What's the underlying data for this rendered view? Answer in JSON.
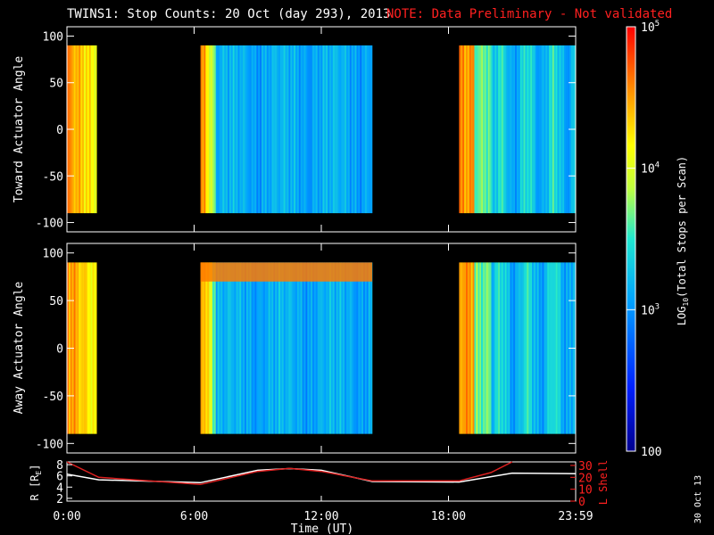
{
  "header": {
    "title": "TWINS1: Stop Counts: 20 Oct (day 293), 2013",
    "note": "NOTE: Data Preliminary - Not validated"
  },
  "side_date": "30 Oct 13",
  "colors": {
    "note": "#ff2020",
    "line_r": "#ffffff",
    "line_l": "#dd2020"
  },
  "chart_data": [
    {
      "type": "heatmap",
      "ylabel": "Toward Actuator Angle",
      "ylim": [
        -110,
        110
      ],
      "y_ticks": [
        "100",
        "50",
        "0",
        "-50",
        "-100"
      ],
      "data_range_deg": [
        -90,
        90
      ],
      "data_intervals_hours": [
        [
          0,
          1.4
        ],
        [
          6.3,
          14.4
        ],
        [
          18.5,
          24
        ]
      ],
      "colormap": "rainbow"
    },
    {
      "type": "heatmap",
      "ylabel": "Away Actuator Angle",
      "ylim": [
        -110,
        110
      ],
      "y_ticks": [
        "100",
        "50",
        "0",
        "-50",
        "-100"
      ],
      "data_range_deg": [
        -90,
        90
      ],
      "data_intervals_hours": [
        [
          0,
          1.4
        ],
        [
          6.3,
          14.4
        ],
        [
          18.5,
          24
        ]
      ],
      "colormap": "rainbow"
    },
    {
      "type": "line",
      "ylabel_left": "R [R",
      "ylabel_left_sub": "E",
      "ylabel_left_end": "]",
      "ylabel_right": "L Shell",
      "ylim_left": [
        1.5,
        8.5
      ],
      "ylim_right": [
        0,
        33
      ],
      "left_ticks": [
        "8",
        "6",
        "4",
        "2"
      ],
      "right_ticks": [
        "30",
        "20",
        "10",
        "0"
      ],
      "xlabel": "Time (UT)",
      "x_ticks": [
        "0:00",
        "6:00",
        "12:00",
        "18:00",
        "23:59"
      ],
      "series": [
        {
          "key": "R",
          "x": [
            0,
            1.5,
            6.3,
            9,
            10.5,
            12,
            14.4,
            18.5,
            21,
            24
          ],
          "y": [
            6.3,
            5.3,
            4.8,
            7.0,
            7.3,
            7.0,
            5.0,
            4.9,
            6.5,
            6.4
          ]
        },
        {
          "key": "L",
          "x": [
            0,
            1.5,
            6.3,
            9,
            10.5,
            12,
            14.4,
            18.5,
            20,
            21
          ],
          "y": [
            33,
            20,
            14,
            25,
            27.5,
            25,
            17,
            17,
            24,
            33
          ]
        }
      ]
    }
  ],
  "colorbar": {
    "label_pre": "LOG",
    "label_sub": "10",
    "label_post": "(Total Stops per Scan)",
    "ticks": [
      {
        "base": "10",
        "exp": "5"
      },
      {
        "base": "10",
        "exp": "4"
      },
      {
        "base": "10",
        "exp": "3"
      },
      {
        "base": "100",
        "exp": ""
      }
    ],
    "range": [
      100,
      100000
    ]
  }
}
